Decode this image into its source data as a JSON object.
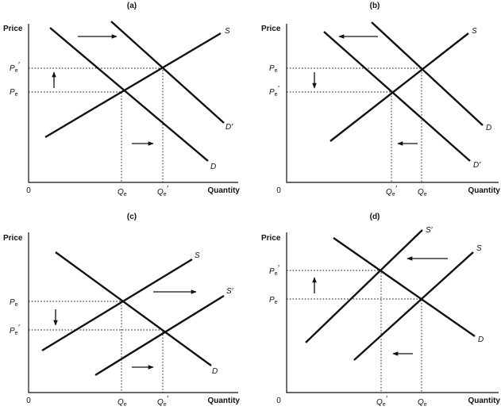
{
  "panels": [
    {
      "title": "(a)",
      "y_axis_label": "Price",
      "x_axis_label": "Quantity",
      "origin_label": "0",
      "curves": [
        {
          "id": "S",
          "label": "S"
        },
        {
          "id": "D",
          "label": "D"
        },
        {
          "id": "D'",
          "label": "D′"
        }
      ],
      "price_ticks": [
        {
          "base": "P",
          "sub": "e",
          "mark": "′"
        },
        {
          "base": "P",
          "sub": "e",
          "mark": ""
        }
      ],
      "quantity_ticks": [
        {
          "base": "Q",
          "sub": "e",
          "mark": ""
        },
        {
          "base": "Q",
          "sub": "e",
          "mark": "′"
        }
      ],
      "shift_arrows": [
        {
          "meaning": "demand shifts right",
          "direction": "right"
        },
        {
          "meaning": "price rises",
          "direction": "up"
        },
        {
          "meaning": "quantity rises",
          "direction": "right"
        }
      ]
    },
    {
      "title": "(b)",
      "y_axis_label": "Price",
      "x_axis_label": "Quantity",
      "origin_label": "0",
      "curves": [
        {
          "id": "S",
          "label": "S"
        },
        {
          "id": "D",
          "label": "D"
        },
        {
          "id": "D'",
          "label": "D′"
        }
      ],
      "price_ticks": [
        {
          "base": "P",
          "sub": "e",
          "mark": ""
        },
        {
          "base": "P",
          "sub": "e",
          "mark": "′"
        }
      ],
      "quantity_ticks": [
        {
          "base": "Q",
          "sub": "e",
          "mark": "′"
        },
        {
          "base": "Q",
          "sub": "e",
          "mark": ""
        }
      ],
      "shift_arrows": [
        {
          "meaning": "demand shifts left",
          "direction": "left"
        },
        {
          "meaning": "price falls",
          "direction": "down"
        },
        {
          "meaning": "quantity falls",
          "direction": "left"
        }
      ]
    },
    {
      "title": "(c)",
      "y_axis_label": "Price",
      "x_axis_label": "Quantity",
      "origin_label": "0",
      "curves": [
        {
          "id": "S",
          "label": "S"
        },
        {
          "id": "S'",
          "label": "S′"
        },
        {
          "id": "D",
          "label": "D"
        }
      ],
      "price_ticks": [
        {
          "base": "P",
          "sub": "e",
          "mark": ""
        },
        {
          "base": "P",
          "sub": "e",
          "mark": "′"
        }
      ],
      "quantity_ticks": [
        {
          "base": "Q",
          "sub": "e",
          "mark": ""
        },
        {
          "base": "Q",
          "sub": "e",
          "mark": "′"
        }
      ],
      "shift_arrows": [
        {
          "meaning": "supply shifts right",
          "direction": "right"
        },
        {
          "meaning": "price falls",
          "direction": "down"
        },
        {
          "meaning": "quantity rises",
          "direction": "right"
        }
      ]
    },
    {
      "title": "(d)",
      "y_axis_label": "Price",
      "x_axis_label": "Quantity",
      "origin_label": "0",
      "curves": [
        {
          "id": "S'",
          "label": "S′"
        },
        {
          "id": "S",
          "label": "S"
        },
        {
          "id": "D",
          "label": "D"
        }
      ],
      "price_ticks": [
        {
          "base": "P",
          "sub": "e",
          "mark": "′"
        },
        {
          "base": "P",
          "sub": "e",
          "mark": ""
        }
      ],
      "quantity_ticks": [
        {
          "base": "Q",
          "sub": "e",
          "mark": "′"
        },
        {
          "base": "Q",
          "sub": "e",
          "mark": ""
        }
      ],
      "shift_arrows": [
        {
          "meaning": "supply shifts left",
          "direction": "left"
        },
        {
          "meaning": "price rises",
          "direction": "up"
        },
        {
          "meaning": "quantity falls",
          "direction": "left"
        }
      ]
    }
  ]
}
